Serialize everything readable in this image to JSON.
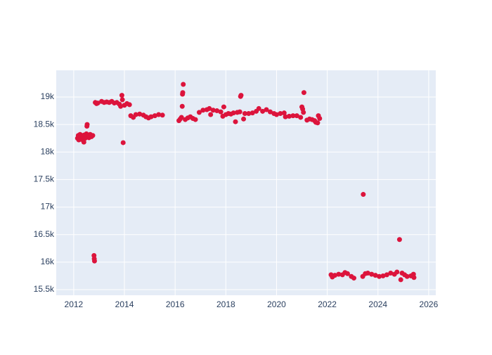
{
  "chart_data": {
    "type": "scatter",
    "color": "#dc143c",
    "grid": true,
    "xlim": [
      2011.31,
      2026.28
    ],
    "ylim": [
      15398,
      19485
    ],
    "xticks": [
      2012,
      2014,
      2016,
      2018,
      2020,
      2022,
      2024,
      2026
    ],
    "yticks": [
      {
        "value": 15500,
        "label": "15.5k"
      },
      {
        "value": 16000,
        "label": "16k"
      },
      {
        "value": 16500,
        "label": "16.5k"
      },
      {
        "value": 17000,
        "label": "17k"
      },
      {
        "value": 17500,
        "label": "17.5k"
      },
      {
        "value": 18000,
        "label": "18k"
      },
      {
        "value": 18500,
        "label": "18.5k"
      },
      {
        "value": 19000,
        "label": "19k"
      }
    ],
    "x": [
      2012.15,
      2012.18,
      2012.2,
      2012.22,
      2012.25,
      2012.28,
      2012.3,
      2012.33,
      2012.36,
      2012.4,
      2012.42,
      2012.45,
      2012.48,
      2012.5,
      2012.52,
      2012.53,
      2012.55,
      2012.6,
      2012.65,
      2012.7,
      2012.75,
      2012.8,
      2012.81,
      2012.82,
      2012.85,
      2012.9,
      2012.95,
      2013.1,
      2013.2,
      2013.3,
      2013.4,
      2013.5,
      2013.6,
      2013.7,
      2013.8,
      2013.85,
      2013.9,
      2013.92,
      2013.95,
      2014.0,
      2014.1,
      2014.2,
      2014.25,
      2014.35,
      2014.45,
      2014.6,
      2014.75,
      2014.85,
      2014.95,
      2015.05,
      2015.2,
      2015.35,
      2015.5,
      2016.15,
      2016.2,
      2016.25,
      2016.28,
      2016.29,
      2016.3,
      2016.32,
      2016.4,
      2016.5,
      2016.6,
      2016.7,
      2016.8,
      2016.95,
      2017.1,
      2017.25,
      2017.35,
      2017.4,
      2017.5,
      2017.65,
      2017.8,
      2017.88,
      2017.92,
      2018.0,
      2018.1,
      2018.2,
      2018.3,
      2018.38,
      2018.45,
      2018.55,
      2018.58,
      2018.6,
      2018.7,
      2018.75,
      2018.9,
      2019.05,
      2019.2,
      2019.3,
      2019.45,
      2019.6,
      2019.75,
      2019.9,
      2020.0,
      2020.15,
      2020.3,
      2020.35,
      2020.5,
      2020.65,
      2020.8,
      2020.95,
      2021.0,
      2021.03,
      2021.06,
      2021.08,
      2021.2,
      2021.3,
      2021.4,
      2021.5,
      2021.55,
      2021.62,
      2021.65,
      2021.7,
      2022.15,
      2022.2,
      2022.3,
      2022.45,
      2022.6,
      2022.7,
      2022.8,
      2022.95,
      2023.05,
      2023.4,
      2023.42,
      2023.5,
      2023.6,
      2023.75,
      2023.9,
      2024.05,
      2024.2,
      2024.35,
      2024.5,
      2024.65,
      2024.75,
      2024.85,
      2024.9,
      2024.95,
      2025.05,
      2025.15,
      2025.3,
      2025.4,
      2025.42
    ],
    "values": [
      18250,
      18300,
      18220,
      18280,
      18320,
      18260,
      18230,
      18300,
      18270,
      18180,
      18310,
      18250,
      18290,
      18330,
      18470,
      18500,
      18300,
      18260,
      18320,
      18280,
      18300,
      16120,
      16060,
      16020,
      18900,
      18880,
      18890,
      18920,
      18900,
      18910,
      18900,
      18920,
      18890,
      18900,
      18870,
      18830,
      19030,
      18950,
      18170,
      18850,
      18880,
      18860,
      18660,
      18630,
      18680,
      18690,
      18670,
      18640,
      18620,
      18640,
      18660,
      18680,
      18670,
      18570,
      18600,
      18630,
      18830,
      19050,
      19080,
      19230,
      18590,
      18620,
      18640,
      18610,
      18590,
      18720,
      18760,
      18770,
      18790,
      18680,
      18760,
      18750,
      18730,
      18650,
      18820,
      18680,
      18700,
      18690,
      18710,
      18550,
      18720,
      18730,
      19010,
      19030,
      18600,
      18700,
      18700,
      18710,
      18740,
      18790,
      18740,
      18770,
      18730,
      18700,
      18680,
      18700,
      18710,
      18640,
      18650,
      18660,
      18660,
      18630,
      18820,
      18780,
      18720,
      19080,
      18580,
      18600,
      18590,
      18570,
      18540,
      18530,
      18660,
      18610,
      15770,
      15730,
      15760,
      15780,
      15770,
      15810,
      15790,
      15740,
      15710,
      15740,
      17230,
      15790,
      15800,
      15780,
      15760,
      15740,
      15750,
      15770,
      15800,
      15780,
      15820,
      16410,
      15680,
      15800,
      15770,
      15740,
      15750,
      15780,
      15720
    ]
  }
}
